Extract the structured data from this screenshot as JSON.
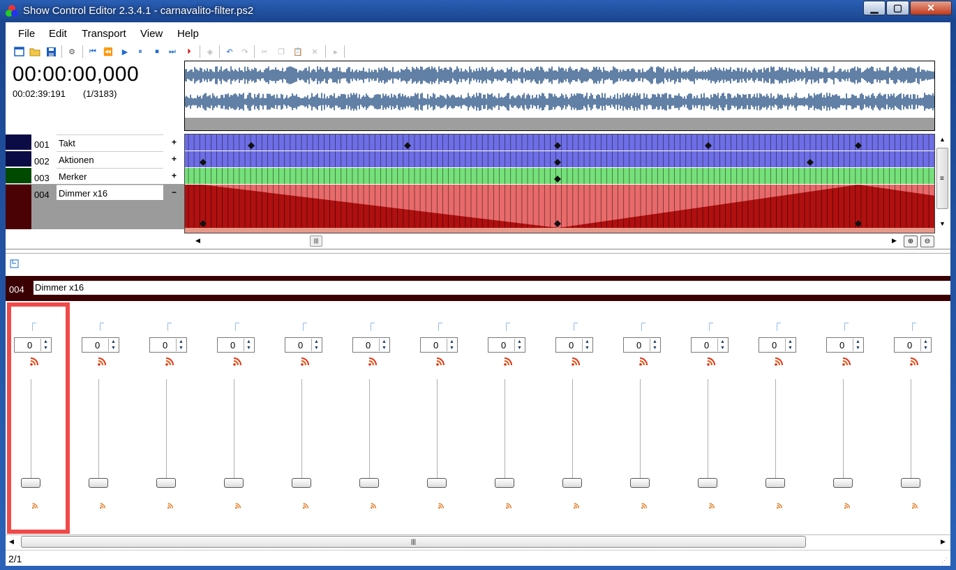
{
  "window": {
    "title": "Show Control Editor 2.3.4.1 - carnavalito-filter.ps2",
    "minimize": "▁",
    "maximize": "▢",
    "close": "✕"
  },
  "menu": [
    "File",
    "Edit",
    "Transport",
    "View",
    "Help"
  ],
  "time": {
    "current": "00:00:00,000",
    "total": "00:02:39:191",
    "frames": "(1/3183)"
  },
  "tracks": [
    {
      "num": "001",
      "name": "Takt",
      "toggle": "+",
      "color": "#0b0c46"
    },
    {
      "num": "002",
      "name": "Aktionen",
      "toggle": "+",
      "color": "#0b0c46"
    },
    {
      "num": "003",
      "name": "Merker",
      "toggle": "+",
      "color": "#004a00"
    },
    {
      "num": "004",
      "name": "Dimmer x16",
      "toggle": "−",
      "color": "#4a0204"
    }
  ],
  "channel": {
    "num": "004",
    "name": "Dimmer x16"
  },
  "fader_values": [
    "0",
    "0",
    "0",
    "0",
    "0",
    "0",
    "0",
    "0",
    "0",
    "0",
    "0",
    "0",
    "0",
    "0"
  ],
  "status": {
    "page": "2/1"
  },
  "colors": {
    "takt_lane": "#6e6ee6",
    "merker_lane": "#76e07a",
    "dimmer_lane": "#e86a6a",
    "dimmer_fill": "#b01010",
    "selected_border": "#ef4a4a",
    "wave": "#3a6190"
  }
}
